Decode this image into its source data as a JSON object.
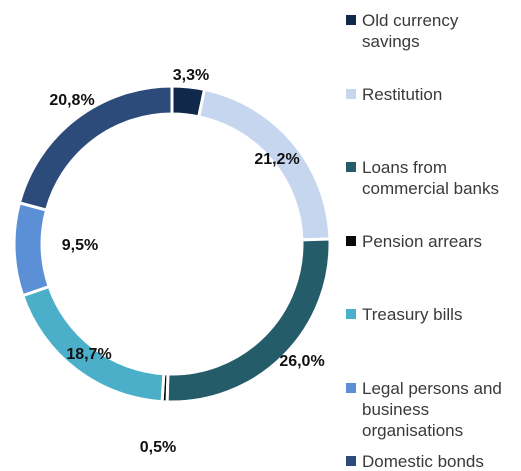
{
  "chart_data": {
    "type": "donut",
    "categories": [
      "Old currency savings",
      "Restitution",
      "Loans from commercial banks",
      "Pension arrears",
      "Treasury bills",
      "Legal persons and business organisations",
      "Domestic bonds"
    ],
    "values": [
      3.3,
      21.2,
      26.0,
      0.5,
      18.7,
      9.5,
      20.8
    ],
    "value_labels": [
      "3,3%",
      "21,2%",
      "26,0%",
      "0,5%",
      "18,7%",
      "9,5%",
      "20,8%"
    ],
    "colors": [
      "#10294a",
      "#c6d6ef",
      "#255c6a",
      "#0a0a0a",
      "#4bafc9",
      "#5b8fd6",
      "#2d4b7a"
    ],
    "legend": "right"
  }
}
